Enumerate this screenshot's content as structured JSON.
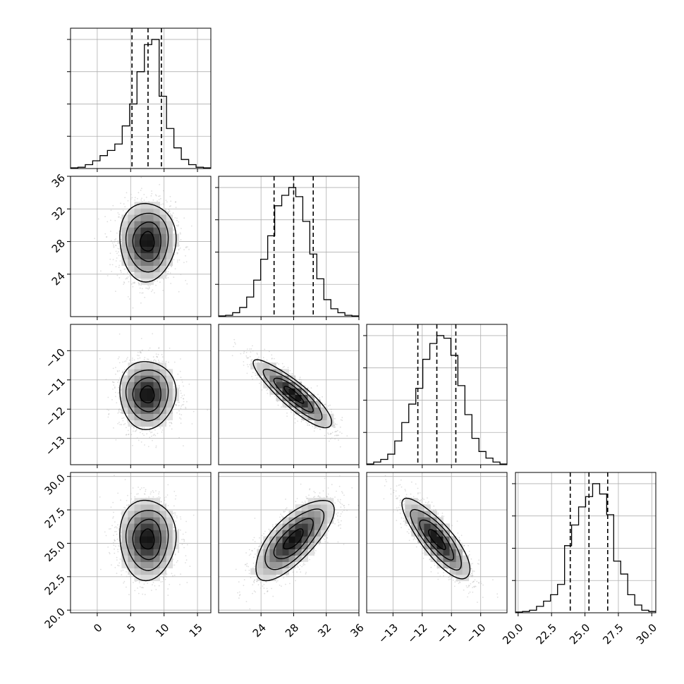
{
  "chart_data": {
    "type": "corner",
    "parameters": [
      {
        "index": 0,
        "mean": 7.5,
        "sigma": 2.1,
        "quantiles": [
          5.2,
          7.6,
          9.6
        ],
        "range": [
          -4,
          17
        ],
        "ticks": [
          0,
          5,
          10,
          15
        ],
        "tick_labels": [
          "0",
          "5",
          "10",
          "15"
        ],
        "hist": [
          0.005,
          0.01,
          0.03,
          0.06,
          0.1,
          0.14,
          0.19,
          0.33,
          0.5,
          0.75,
          0.96,
          1.0,
          0.56,
          0.31,
          0.16,
          0.07,
          0.03,
          0.01,
          0.005
        ]
      },
      {
        "index": 1,
        "mean": 28.0,
        "sigma": 2.4,
        "quantiles": [
          25.6,
          28.0,
          30.4
        ],
        "range": [
          18.8,
          36.0
        ],
        "ticks": [
          24,
          28,
          32,
          36
        ],
        "tick_labels": [
          "24",
          "28",
          "32",
          "36"
        ],
        "hist": [
          0.005,
          0.01,
          0.03,
          0.07,
          0.15,
          0.28,
          0.44,
          0.62,
          0.85,
          0.93,
          0.99,
          0.92,
          0.73,
          0.48,
          0.29,
          0.13,
          0.06,
          0.03,
          0.01,
          0.005
        ]
      },
      {
        "index": 2,
        "mean": -11.5,
        "sigma": 0.58,
        "quantiles": [
          -12.15,
          -11.5,
          -10.85
        ],
        "range": [
          -13.9,
          -9.1
        ],
        "ticks": [
          -13,
          -12,
          -11,
          -10
        ],
        "tick_labels": [
          "−13",
          "−12",
          "−11",
          "−10"
        ],
        "hist": [
          0.005,
          0.02,
          0.04,
          0.08,
          0.18,
          0.32,
          0.46,
          0.58,
          0.8,
          0.92,
          0.98,
          0.96,
          0.83,
          0.6,
          0.38,
          0.2,
          0.1,
          0.05,
          0.02,
          0.005
        ]
      },
      {
        "index": 3,
        "mean": 25.3,
        "sigma": 1.5,
        "quantiles": [
          23.9,
          25.3,
          26.7
        ],
        "range": [
          19.8,
          30.3
        ],
        "ticks": [
          20.0,
          22.5,
          25.0,
          27.5,
          30.0
        ],
        "tick_labels": [
          "20.0",
          "22.5",
          "25.0",
          "27.5",
          "30.0"
        ],
        "hist": [
          0.005,
          0.01,
          0.02,
          0.05,
          0.09,
          0.14,
          0.22,
          0.52,
          0.68,
          0.82,
          0.9,
          1.0,
          0.92,
          0.76,
          0.4,
          0.3,
          0.14,
          0.06,
          0.02,
          0.01
        ]
      }
    ],
    "correlations": {
      "1,0": 0.0,
      "2,0": 0.0,
      "2,1": -0.88,
      "3,0": 0.0,
      "3,1": 0.72,
      "3,2": -0.82
    },
    "y_ticks": {
      "1": {
        "ticks": [
          24,
          28,
          32,
          36
        ],
        "tick_labels": [
          "24",
          "28",
          "32",
          "36"
        ]
      },
      "2": {
        "ticks": [
          -13,
          -12,
          -11,
          -10
        ],
        "tick_labels": [
          "−13",
          "−12",
          "−11",
          "−10"
        ]
      },
      "3": {
        "ticks": [
          20.0,
          22.5,
          25.0,
          27.5,
          30.0
        ],
        "tick_labels": [
          "20.0",
          "22.5",
          "25.0",
          "27.5",
          "30.0"
        ]
      }
    },
    "grid": true,
    "contour_levels": [
      0.5,
      1.0,
      1.5,
      2.0
    ],
    "colors": {
      "line": "#000000",
      "grid": "#b0b0b0",
      "points": "#b8b8b8"
    }
  }
}
